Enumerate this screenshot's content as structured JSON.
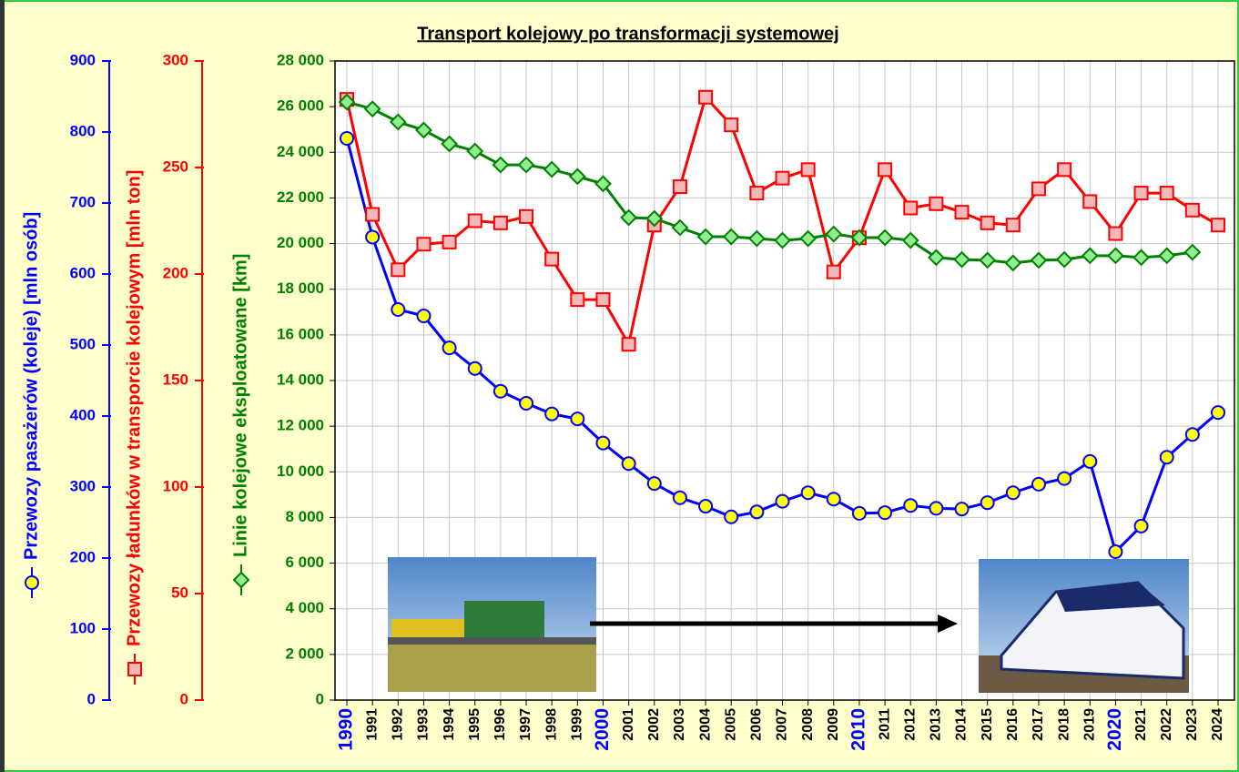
{
  "chart_data": {
    "type": "line",
    "title": "Transport kolejowy po transformacji systemowej",
    "categories": [
      "1990",
      "1991",
      "1992",
      "1993",
      "1994",
      "1995",
      "1996",
      "1997",
      "1998",
      "1999",
      "2000",
      "2001",
      "2002",
      "2003",
      "2004",
      "2005",
      "2006",
      "2007",
      "2008",
      "2009",
      "2010",
      "2011",
      "2012",
      "2013",
      "2014",
      "2015",
      "2016",
      "2017",
      "2018",
      "2019",
      "2020",
      "2021",
      "2022",
      "2023",
      "2024"
    ],
    "ylim": [
      0,
      28000
    ],
    "yticks": [
      0,
      {
        "value": 2000,
        "label": "2 000"
      },
      {
        "value": 4000,
        "label": "4 000"
      },
      {
        "value": 6000,
        "label": "6 000"
      },
      {
        "value": 8000,
        "label": "8 000"
      },
      {
        "value": 10000,
        "label": "10 000"
      },
      {
        "value": 12000,
        "label": "12 000"
      },
      {
        "value": 14000,
        "label": "14 000"
      },
      {
        "value": 16000,
        "label": "16 000"
      },
      {
        "value": 18000,
        "label": "18 000"
      },
      {
        "value": 20000,
        "label": "20 000"
      },
      {
        "value": 22000,
        "label": "22 000"
      },
      {
        "value": 24000,
        "label": "24 000"
      },
      {
        "value": 26000,
        "label": "26 000"
      },
      {
        "value": 28000,
        "label": "28 000"
      }
    ],
    "y2lim": [
      0,
      900
    ],
    "y2ticks": [
      0,
      100,
      200,
      300,
      400,
      500,
      600,
      700,
      800,
      900
    ],
    "y3lim": [
      0,
      300
    ],
    "y3ticks": [
      0,
      50,
      100,
      150,
      200,
      250,
      300
    ],
    "grid": true,
    "series": [
      {
        "name": "Przewozy pasażerów (koleje) [mln osób]",
        "color": "#0000ff",
        "marker": "circle",
        "marker_fill": "#ffff00",
        "axis": "y2",
        "values": [
          791,
          652,
          550,
          541,
          496,
          467,
          435,
          418,
          403,
          396,
          362,
          333,
          305,
          285,
          273,
          258,
          265,
          280,
          292,
          283,
          263,
          264,
          274,
          270,
          269,
          278,
          292,
          304,
          312,
          336,
          209,
          245,
          342,
          374,
          405
        ]
      },
      {
        "name": "Przewozy ładunków w transporcie kolejowym [mln ton]",
        "color": "#ff0000",
        "marker": "square",
        "marker_fill": "#f4b8b8",
        "axis": "y3",
        "values": [
          282,
          228,
          202,
          214,
          215,
          225,
          224,
          227,
          207,
          188,
          188,
          167,
          223,
          241,
          283,
          270,
          238,
          245,
          249,
          201,
          217,
          249,
          231,
          233,
          229,
          224,
          223,
          240,
          249,
          234,
          219,
          238,
          238,
          230,
          223
        ]
      },
      {
        "name": "Linie kolejowe eksploatowane [km]",
        "color": "#008000",
        "marker": "diamond",
        "marker_fill": "#90ee90",
        "axis": "y",
        "values": [
          26200,
          25900,
          25330,
          24970,
          24370,
          24050,
          23450,
          23450,
          23250,
          22940,
          22620,
          21140,
          21100,
          20700,
          20300,
          20300,
          20220,
          20140,
          20220,
          20420,
          20260,
          20260,
          20140,
          19390,
          19300,
          19270,
          19150,
          19270,
          19300,
          19470,
          19470,
          19390,
          19470,
          19620,
          null
        ]
      }
    ]
  }
}
